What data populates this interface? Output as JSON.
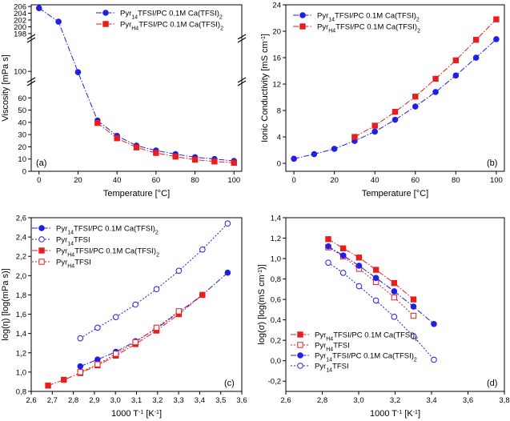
{
  "colors": {
    "blue": "#1f1fe6",
    "red": "#e61e1e"
  },
  "chart_data": [
    {
      "id": "a",
      "type": "line",
      "panel_label": "(a)",
      "xlabel": "Temperature [°C]",
      "ylabel": "Viscosity [mPa s]",
      "xlim": [
        -4,
        104
      ],
      "xticks": [
        0,
        20,
        40,
        60,
        80,
        100
      ],
      "x_tick_labels": [
        "0",
        "20",
        "40",
        "60",
        "80",
        "100"
      ],
      "broken_y": true,
      "y_segments": [
        {
          "range": [
            0,
            70
          ],
          "ticks": [
            0,
            10,
            20,
            30,
            40,
            50,
            60
          ],
          "tick_labels": [
            "0",
            "10",
            "20",
            "30",
            "40",
            "50",
            "60"
          ]
        },
        {
          "range": [
            97.7,
            101.5
          ],
          "ticks": [
            100
          ],
          "tick_labels": [
            "100"
          ]
        },
        {
          "range": [
            197.5,
            206.5
          ],
          "ticks": [
            198,
            200,
            202,
            204,
            206
          ],
          "tick_labels": [
            "198",
            "200",
            "202",
            "204",
            "206"
          ]
        }
      ],
      "legend_position": "top-right",
      "series": [
        {
          "name_parts": [
            "Pyr",
            "14",
            "TFSI/PC 0.1M Ca(TFSI)",
            "2"
          ],
          "color": "blue",
          "marker": "circle",
          "filled": true,
          "x": [
            0,
            10,
            20,
            30,
            40,
            50,
            60,
            70,
            80,
            90,
            100
          ],
          "y": [
            205.5,
            201.5,
            99.5,
            41.5,
            29,
            21,
            17,
            14,
            11.5,
            10,
            8.5
          ]
        },
        {
          "name_parts": [
            "Pyr",
            "H4",
            "TFSI/PC 0.1M Ca(TFSI)",
            "2"
          ],
          "color": "red",
          "marker": "square",
          "filled": true,
          "x": [
            30,
            40,
            50,
            60,
            70,
            80,
            90,
            100
          ],
          "y": [
            39.5,
            27,
            19.5,
            15,
            12,
            9.5,
            8,
            7
          ]
        }
      ]
    },
    {
      "id": "b",
      "type": "line",
      "panel_label": "(b)",
      "xlabel": "Temperature [°C]",
      "ylabel_parts": [
        "Ionic Conductivity [mS cm",
        "-1",
        "]"
      ],
      "xlim": [
        -4,
        104
      ],
      "ylim": [
        -1.2,
        24
      ],
      "xticks": [
        0,
        20,
        40,
        60,
        80,
        100
      ],
      "x_tick_labels": [
        "0",
        "20",
        "40",
        "60",
        "80",
        "100"
      ],
      "yticks": [
        0,
        4,
        8,
        12,
        16,
        20,
        24
      ],
      "y_tick_labels": [
        "0",
        "4",
        "8",
        "12",
        "16",
        "20",
        "24"
      ],
      "legend_position": "top-left",
      "series": [
        {
          "name_parts": [
            "Pyr",
            "14",
            "TFSI/PC 0.1M Ca(TFSI)",
            "2"
          ],
          "color": "blue",
          "marker": "circle",
          "filled": true,
          "x": [
            0,
            10,
            20,
            30,
            40,
            50,
            60,
            70,
            80,
            90,
            100
          ],
          "y": [
            0.7,
            1.4,
            2.2,
            3.4,
            4.8,
            6.6,
            8.6,
            10.8,
            13.3,
            16.0,
            18.8
          ]
        },
        {
          "name_parts": [
            "Pyr",
            "H4",
            "TFSI/PC 0.1M Ca(TFSI)",
            "2"
          ],
          "color": "red",
          "marker": "square",
          "filled": true,
          "x": [
            30,
            40,
            50,
            60,
            70,
            80,
            90,
            100
          ],
          "y": [
            4.0,
            5.7,
            7.8,
            10.1,
            12.8,
            15.6,
            18.7,
            21.8
          ]
        }
      ]
    },
    {
      "id": "c",
      "type": "line",
      "panel_label": "(c)",
      "xlabel_parts": [
        "1000 T",
        "-1",
        " [K",
        "-1",
        "]"
      ],
      "ylabel": "log(η) [log(mPa s)]",
      "xlim": [
        2.6,
        3.6
      ],
      "ylim": [
        0.8,
        2.6
      ],
      "xticks": [
        2.6,
        2.7,
        2.8,
        2.9,
        3.0,
        3.1,
        3.2,
        3.3,
        3.4,
        3.5,
        3.6
      ],
      "x_tick_labels": [
        "2,6",
        "2,7",
        "2,8",
        "2,9",
        "3,0",
        "3,1",
        "3,2",
        "3,3",
        "3,4",
        "3,5",
        "3,6"
      ],
      "yticks": [
        0.8,
        1.0,
        1.2,
        1.4,
        1.6,
        1.8,
        2.0,
        2.2,
        2.4,
        2.6
      ],
      "y_tick_labels": [
        "0,8",
        "1,0",
        "1,2",
        "1,4",
        "1,6",
        "1,8",
        "2,0",
        "2,2",
        "2,4",
        "2,6"
      ],
      "legend_position": "top-left",
      "series": [
        {
          "name_parts": [
            "Pyr",
            "14",
            "TFSI/PC 0.1M Ca(TFSI)",
            "2"
          ],
          "color": "blue",
          "marker": "circle",
          "filled": true,
          "x": [
            2.833,
            2.915,
            3.002,
            3.095,
            3.195,
            3.301,
            3.413,
            3.533
          ],
          "y": [
            1.06,
            1.13,
            1.21,
            1.32,
            1.45,
            1.62,
            1.8,
            2.03
          ]
        },
        {
          "name_parts": [
            "Pyr",
            "14",
            "TFSI"
          ],
          "color": "blue",
          "marker": "circle",
          "filled": false,
          "x": [
            2.833,
            2.915,
            3.002,
            3.095,
            3.195,
            3.301,
            3.413,
            3.533
          ],
          "y": [
            1.35,
            1.46,
            1.57,
            1.7,
            1.86,
            2.05,
            2.27,
            2.54
          ]
        },
        {
          "name_parts": [
            "Pyr",
            "H4",
            "TFSI/PC 0.1M Ca(TFSI)",
            "2"
          ],
          "color": "red",
          "marker": "square",
          "filled": true,
          "x": [
            2.68,
            2.755,
            2.833,
            2.915,
            3.002,
            3.095,
            3.195,
            3.301,
            3.413
          ],
          "y": [
            0.86,
            0.92,
            0.99,
            1.07,
            1.17,
            1.29,
            1.43,
            1.6,
            1.8
          ]
        },
        {
          "name_parts": [
            "Pyr",
            "H4",
            "TFSI"
          ],
          "color": "red",
          "marker": "square",
          "filled": false,
          "x": [
            2.833,
            2.915,
            3.002,
            3.095,
            3.195,
            3.301
          ],
          "y": [
            1.0,
            1.08,
            1.19,
            1.31,
            1.46,
            1.63
          ]
        }
      ]
    },
    {
      "id": "d",
      "type": "line",
      "panel_label": "(d)",
      "xlabel_parts": [
        "1000 T",
        "-1",
        " [K",
        "-1",
        "]"
      ],
      "ylabel_parts": [
        "log(σ) [log(mS cm",
        "-1",
        ")]"
      ],
      "xlim": [
        2.6,
        3.8
      ],
      "ylim": [
        -0.3,
        1.4
      ],
      "xticks": [
        2.6,
        2.8,
        3.0,
        3.2,
        3.4,
        3.6,
        3.8
      ],
      "x_tick_labels": [
        "2,6",
        "2,8",
        "3,0",
        "3,2",
        "3,4",
        "3,6",
        "3,8"
      ],
      "yticks": [
        -0.2,
        0.0,
        0.2,
        0.4,
        0.6,
        0.8,
        1.0,
        1.2,
        1.4
      ],
      "y_tick_labels": [
        "-0,2",
        "0,0",
        "0,2",
        "0,4",
        "0,6",
        "0,8",
        "1,0",
        "1,2",
        "1,4"
      ],
      "legend_position": "bottom-left",
      "series": [
        {
          "name_parts": [
            "Pyr",
            "H4",
            "TFSI/PC 0.1M Ca(TFSI)",
            "2"
          ],
          "color": "red",
          "marker": "square",
          "filled": true,
          "x": [
            2.833,
            2.915,
            3.002,
            3.095,
            3.195,
            3.301
          ],
          "y": [
            1.19,
            1.1,
            1.01,
            0.89,
            0.76,
            0.6
          ]
        },
        {
          "name_parts": [
            "Pyr",
            "H4",
            "TFSI"
          ],
          "color": "red",
          "marker": "square",
          "filled": false,
          "x": [
            2.833,
            2.915,
            3.002,
            3.095,
            3.195,
            3.301
          ],
          "y": [
            1.11,
            1.02,
            0.9,
            0.77,
            0.62,
            0.44
          ]
        },
        {
          "name_parts": [
            "Pyr",
            "14",
            "TFSI/PC 0.1M Ca(TFSI)",
            "2"
          ],
          "color": "blue",
          "marker": "circle",
          "filled": true,
          "x": [
            2.833,
            2.915,
            3.002,
            3.095,
            3.195,
            3.301,
            3.413
          ],
          "y": [
            1.12,
            1.03,
            0.93,
            0.81,
            0.68,
            0.53,
            0.36
          ]
        },
        {
          "name_parts": [
            "Pyr",
            "14",
            "TFSI"
          ],
          "color": "blue",
          "marker": "circle",
          "filled": false,
          "x": [
            2.833,
            2.915,
            3.002,
            3.095,
            3.195,
            3.301,
            3.413
          ],
          "y": [
            0.96,
            0.86,
            0.73,
            0.59,
            0.43,
            0.24,
            0.01
          ]
        }
      ]
    }
  ]
}
